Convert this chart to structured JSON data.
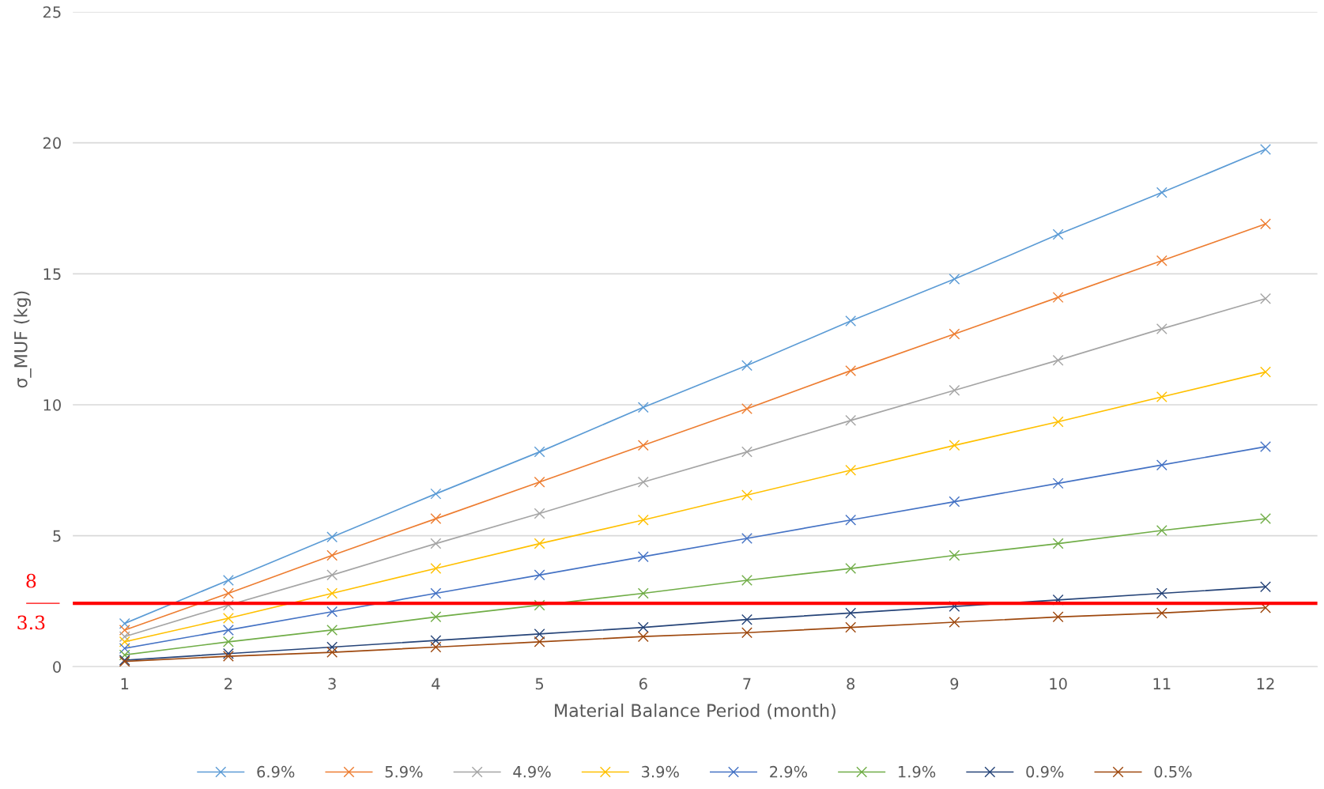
{
  "chart_data": {
    "type": "line",
    "xlabel": "Material Balance Period (month)",
    "ylabel": "σ_MUF (kg)",
    "categories": [
      "1",
      "2",
      "3",
      "4",
      "5",
      "6",
      "7",
      "8",
      "9",
      "10",
      "11",
      "12"
    ],
    "ylim": [
      0,
      25
    ],
    "yticks": [
      0,
      5,
      10,
      15,
      20,
      25
    ],
    "grid": "y",
    "legend": "bottom",
    "marker": "cross",
    "line_style": "solid",
    "series": [
      {
        "name": "6.9%",
        "color": "#5b9bd5",
        "values": [
          1.65,
          3.3,
          4.95,
          6.6,
          8.2,
          9.9,
          11.5,
          13.2,
          14.8,
          16.5,
          18.1,
          19.75
        ]
      },
      {
        "name": "5.9%",
        "color": "#ed7d31",
        "values": [
          1.4,
          2.8,
          4.25,
          5.65,
          7.05,
          8.45,
          9.85,
          11.3,
          12.7,
          14.1,
          15.5,
          16.9
        ]
      },
      {
        "name": "4.9%",
        "color": "#a5a5a5",
        "values": [
          1.15,
          2.35,
          3.5,
          4.7,
          5.85,
          7.05,
          8.2,
          9.4,
          10.55,
          11.7,
          12.9,
          14.05
        ]
      },
      {
        "name": "3.9%",
        "color": "#ffc000",
        "values": [
          0.95,
          1.85,
          2.8,
          3.75,
          4.7,
          5.6,
          6.55,
          7.5,
          8.45,
          9.35,
          10.3,
          11.25
        ]
      },
      {
        "name": "2.9%",
        "color": "#4472c4",
        "values": [
          0.7,
          1.4,
          2.1,
          2.8,
          3.5,
          4.2,
          4.9,
          5.6,
          6.3,
          7.0,
          7.7,
          8.4
        ]
      },
      {
        "name": "1.9%",
        "color": "#70ad47",
        "values": [
          0.45,
          0.95,
          1.4,
          1.9,
          2.35,
          2.8,
          3.3,
          3.75,
          4.25,
          4.7,
          5.2,
          5.65
        ]
      },
      {
        "name": "0.9%",
        "color": "#264478",
        "values": [
          0.25,
          0.5,
          0.75,
          1.0,
          1.25,
          1.5,
          1.8,
          2.05,
          2.3,
          2.55,
          2.8,
          3.05
        ]
      },
      {
        "name": "0.5%",
        "color": "#9e480e",
        "values": [
          0.2,
          0.4,
          0.55,
          0.75,
          0.95,
          1.15,
          1.3,
          1.5,
          1.7,
          1.9,
          2.05,
          2.25
        ]
      }
    ],
    "ref_lines": [
      {
        "axis": "y",
        "value": 2.42,
        "color": "#ff0000",
        "line_style": "solid"
      }
    ],
    "annotations": [
      "8",
      "3.3"
    ]
  }
}
